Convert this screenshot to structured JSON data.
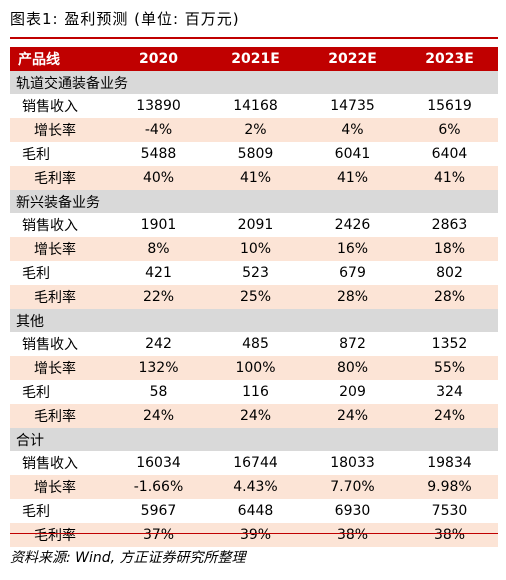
{
  "title": "图表1:  盈利预测 (单位: 百万元)",
  "header": {
    "label": "产品线",
    "cols": [
      "2020",
      "2021E",
      "2022E",
      "2023E"
    ]
  },
  "sections": [
    {
      "name": "轨道交通装备业务",
      "rows": [
        {
          "label": "销售收入",
          "values": [
            "13890",
            "14168",
            "14735",
            "15619"
          ]
        },
        {
          "label": "增长率",
          "values": [
            "-4%",
            "2%",
            "4%",
            "6%"
          ]
        },
        {
          "label": "毛利",
          "values": [
            "5488",
            "5809",
            "6041",
            "6404"
          ]
        },
        {
          "label": "毛利率",
          "values": [
            "40%",
            "41%",
            "41%",
            "41%"
          ]
        }
      ]
    },
    {
      "name": "新兴装备业务",
      "rows": [
        {
          "label": "销售收入",
          "values": [
            "1901",
            "2091",
            "2426",
            "2863"
          ]
        },
        {
          "label": "增长率",
          "values": [
            "8%",
            "10%",
            "16%",
            "18%"
          ]
        },
        {
          "label": "毛利",
          "values": [
            "421",
            "523",
            "679",
            "802"
          ]
        },
        {
          "label": "毛利率",
          "values": [
            "22%",
            "25%",
            "28%",
            "28%"
          ]
        }
      ]
    },
    {
      "name": "其他",
      "rows": [
        {
          "label": "销售收入",
          "values": [
            "242",
            "485",
            "872",
            "1352"
          ]
        },
        {
          "label": "增长率",
          "values": [
            "132%",
            "100%",
            "80%",
            "55%"
          ]
        },
        {
          "label": "毛利",
          "values": [
            "58",
            "116",
            "209",
            "324"
          ]
        },
        {
          "label": "毛利率",
          "values": [
            "24%",
            "24%",
            "24%",
            "24%"
          ]
        }
      ]
    },
    {
      "name": "合计",
      "rows": [
        {
          "label": "销售收入",
          "values": [
            "16034",
            "16744",
            "18033",
            "19834"
          ]
        },
        {
          "label": "增长率",
          "values": [
            "-1.66%",
            "4.43%",
            "7.70%",
            "9.98%"
          ]
        },
        {
          "label": "毛利",
          "values": [
            "5967",
            "6448",
            "6930",
            "7530"
          ]
        },
        {
          "label": "毛利率",
          "values": [
            "37%",
            "39%",
            "38%",
            "38%"
          ]
        }
      ]
    }
  ],
  "source": "资料来源: Wind, 方正证券研究所整理"
}
